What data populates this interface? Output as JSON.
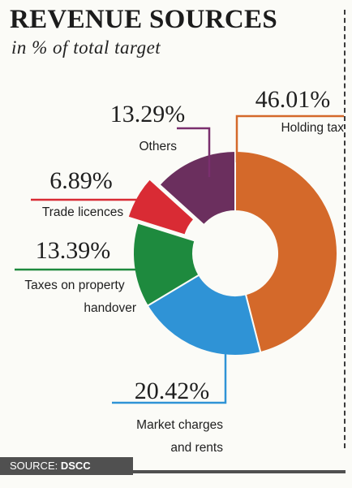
{
  "header": {
    "title": "REVENUE  SOURCES",
    "subtitle": "in % of total target"
  },
  "source": {
    "label": "SOURCE:",
    "value": "DSCC"
  },
  "chart_data": {
    "type": "pie",
    "title": "REVENUE  SOURCES",
    "subtitle": "in % of total target",
    "style": "donut",
    "slices": [
      {
        "label_lines": [
          "Holding tax"
        ],
        "value": 46.01,
        "display": "46.01%",
        "color": "#d4692a"
      },
      {
        "label_lines": [
          "Market charges",
          "and rents"
        ],
        "value": 20.42,
        "display": "20.42%",
        "color": "#2f93d6"
      },
      {
        "label_lines": [
          "Taxes on property",
          "handover"
        ],
        "value": 13.39,
        "display": "13.39%",
        "color": "#1e8a3e"
      },
      {
        "label_lines": [
          "Trade licences"
        ],
        "value": 6.89,
        "display": "6.89%",
        "color": "#d92b34",
        "exploded": true
      },
      {
        "label_lines": [
          "Others"
        ],
        "value": 13.29,
        "display": "13.29%",
        "color": "#6b2f5e"
      }
    ]
  }
}
